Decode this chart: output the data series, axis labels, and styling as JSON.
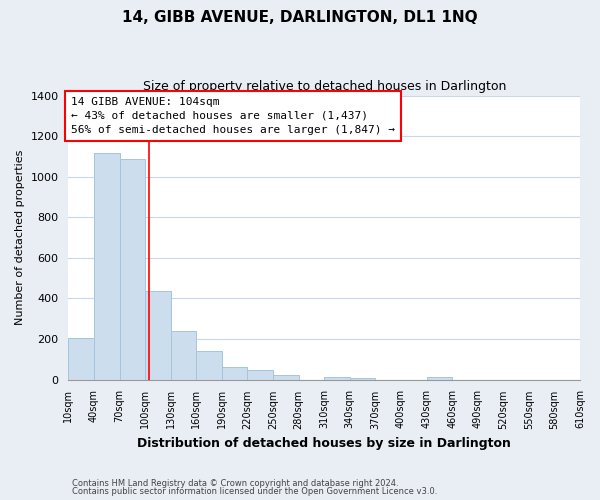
{
  "title": "14, GIBB AVENUE, DARLINGTON, DL1 1NQ",
  "subtitle": "Size of property relative to detached houses in Darlington",
  "xlabel": "Distribution of detached houses by size in Darlington",
  "ylabel": "Number of detached properties",
  "bar_color": "#ccdded",
  "bar_edge_color": "#a8c4dc",
  "bin_edges": [
    10,
    40,
    70,
    100,
    130,
    160,
    190,
    220,
    250,
    280,
    310,
    340,
    370,
    400,
    430,
    460,
    490,
    520,
    550,
    580,
    610
  ],
  "bar_heights": [
    205,
    1115,
    1085,
    435,
    240,
    140,
    60,
    48,
    22,
    0,
    15,
    10,
    0,
    0,
    12,
    0,
    0,
    0,
    0,
    0
  ],
  "x_tick_labels": [
    "10sqm",
    "40sqm",
    "70sqm",
    "100sqm",
    "130sqm",
    "160sqm",
    "190sqm",
    "220sqm",
    "250sqm",
    "280sqm",
    "310sqm",
    "340sqm",
    "370sqm",
    "400sqm",
    "430sqm",
    "460sqm",
    "490sqm",
    "520sqm",
    "550sqm",
    "580sqm",
    "610sqm"
  ],
  "ylim": [
    0,
    1400
  ],
  "yticks": [
    0,
    200,
    400,
    600,
    800,
    1000,
    1200,
    1400
  ],
  "annotation_line1": "14 GIBB AVENUE: 104sqm",
  "annotation_line2": "← 43% of detached houses are smaller (1,437)",
  "annotation_line3": "56% of semi-detached houses are larger (1,847) →",
  "vline_x": 104,
  "footer_line1": "Contains HM Land Registry data © Crown copyright and database right 2024.",
  "footer_line2": "Contains public sector information licensed under the Open Government Licence v3.0.",
  "background_color": "#e8eef4",
  "plot_bg_color": "#ffffff",
  "grid_color": "#c8d8e8",
  "figsize": [
    6.0,
    5.0
  ],
  "dpi": 100
}
